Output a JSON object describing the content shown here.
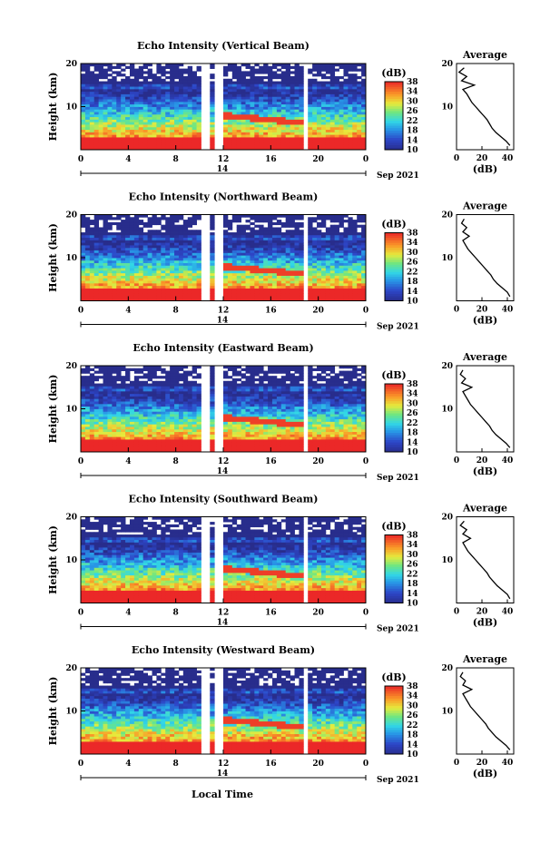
{
  "figure": {
    "xaxis_title": "Local Time",
    "colorbar_unit": "(dB)",
    "colorbar_ticks": [
      "10",
      "14",
      "18",
      "22",
      "26",
      "30",
      "34",
      "38"
    ],
    "colorbar_range": [
      10,
      38
    ],
    "avg_title": "Average",
    "avg_xlabel": "(dB)",
    "avg_xticks": [
      "0",
      "20",
      "40"
    ],
    "height_ticks": [
      "10",
      "20"
    ],
    "time_ticks": [
      "0",
      "4",
      "8",
      "12",
      "16",
      "20",
      "0"
    ],
    "date_day": "14",
    "date_monthyear": "Sep 2021",
    "ylabel": "Height (km)"
  },
  "chart_data": [
    {
      "type": "heatmap",
      "title": "Echo Intensity (Vertical Beam)",
      "xlabel": "Local Time",
      "ylabel": "Height (km)",
      "x_range_hours": [
        0,
        24
      ],
      "ylim": [
        0,
        20
      ],
      "color_range_dB": [
        10,
        38
      ],
      "data_gaps_hours": [
        [
          10,
          11
        ],
        [
          11.4,
          12
        ],
        [
          18.6,
          19.2
        ]
      ],
      "average_profile": {
        "xlabel": "(dB)",
        "xlim": [
          0,
          45
        ],
        "height_km": [
          1,
          2,
          3,
          4,
          5,
          6,
          7,
          8,
          9,
          10,
          11,
          12,
          13,
          14,
          15,
          16,
          17,
          18,
          19
        ],
        "dB": [
          42,
          39,
          35,
          31,
          28,
          26,
          24,
          21,
          18,
          15,
          12,
          10,
          8,
          5,
          14,
          4,
          8,
          2,
          6
        ]
      }
    },
    {
      "type": "heatmap",
      "title": "Echo Intensity (Northward Beam)",
      "xlabel": "Local Time",
      "ylabel": "Height (km)",
      "x_range_hours": [
        0,
        24
      ],
      "ylim": [
        0,
        20
      ],
      "color_range_dB": [
        10,
        38
      ],
      "data_gaps_hours": [
        [
          10,
          11
        ],
        [
          11.4,
          12
        ],
        [
          18.6,
          19.2
        ]
      ],
      "average_profile": {
        "xlabel": "(dB)",
        "xlim": [
          0,
          45
        ],
        "height_km": [
          1,
          2,
          3,
          4,
          5,
          6,
          7,
          8,
          9,
          10,
          11,
          12,
          13,
          14,
          15,
          16,
          17,
          18,
          19
        ],
        "dB": [
          42,
          40,
          36,
          32,
          29,
          27,
          24,
          21,
          18,
          15,
          12,
          9,
          7,
          5,
          10,
          5,
          8,
          4,
          6
        ]
      }
    },
    {
      "type": "heatmap",
      "title": "Echo Intensity (Eastward Beam)",
      "xlabel": "Local Time",
      "ylabel": "Height (km)",
      "x_range_hours": [
        0,
        24
      ],
      "ylim": [
        0,
        20
      ],
      "color_range_dB": [
        10,
        38
      ],
      "data_gaps_hours": [
        [
          10,
          11
        ],
        [
          11.4,
          12
        ],
        [
          18.6,
          19.2
        ]
      ],
      "average_profile": {
        "xlabel": "(dB)",
        "xlim": [
          0,
          45
        ],
        "height_km": [
          1,
          2,
          3,
          4,
          5,
          6,
          7,
          8,
          9,
          10,
          11,
          12,
          13,
          14,
          15,
          16,
          17,
          18,
          19
        ],
        "dB": [
          42,
          39,
          35,
          31,
          28,
          26,
          23,
          20,
          17,
          14,
          11,
          9,
          7,
          5,
          12,
          4,
          7,
          3,
          5
        ]
      }
    },
    {
      "type": "heatmap",
      "title": "Echo Intensity (Southward Beam)",
      "xlabel": "Local Time",
      "ylabel": "Height (km)",
      "x_range_hours": [
        0,
        24
      ],
      "ylim": [
        0,
        20
      ],
      "color_range_dB": [
        10,
        38
      ],
      "data_gaps_hours": [
        [
          10,
          11
        ],
        [
          11.4,
          12
        ],
        [
          18.6,
          19.2
        ]
      ],
      "average_profile": {
        "xlabel": "(dB)",
        "xlim": [
          0,
          45
        ],
        "height_km": [
          1,
          2,
          3,
          4,
          5,
          6,
          7,
          8,
          9,
          10,
          11,
          12,
          13,
          14,
          15,
          16,
          17,
          18,
          19
        ],
        "dB": [
          42,
          40,
          36,
          32,
          29,
          26,
          24,
          21,
          18,
          15,
          12,
          9,
          7,
          5,
          11,
          5,
          8,
          3,
          6
        ]
      }
    },
    {
      "type": "heatmap",
      "title": "Echo Intensity (Westward Beam)",
      "xlabel": "Local Time",
      "ylabel": "Height (km)",
      "x_range_hours": [
        0,
        24
      ],
      "ylim": [
        0,
        20
      ],
      "color_range_dB": [
        10,
        38
      ],
      "data_gaps_hours": [
        [
          10,
          11
        ],
        [
          11.4,
          12
        ],
        [
          18.6,
          19.2
        ]
      ],
      "average_profile": {
        "xlabel": "(dB)",
        "xlim": [
          0,
          45
        ],
        "height_km": [
          1,
          2,
          3,
          4,
          5,
          6,
          7,
          8,
          9,
          10,
          11,
          12,
          13,
          14,
          15,
          16,
          17,
          18,
          19
        ],
        "dB": [
          42,
          39,
          35,
          31,
          28,
          25,
          23,
          20,
          17,
          14,
          11,
          9,
          7,
          5,
          12,
          5,
          7,
          3,
          5
        ]
      }
    }
  ]
}
